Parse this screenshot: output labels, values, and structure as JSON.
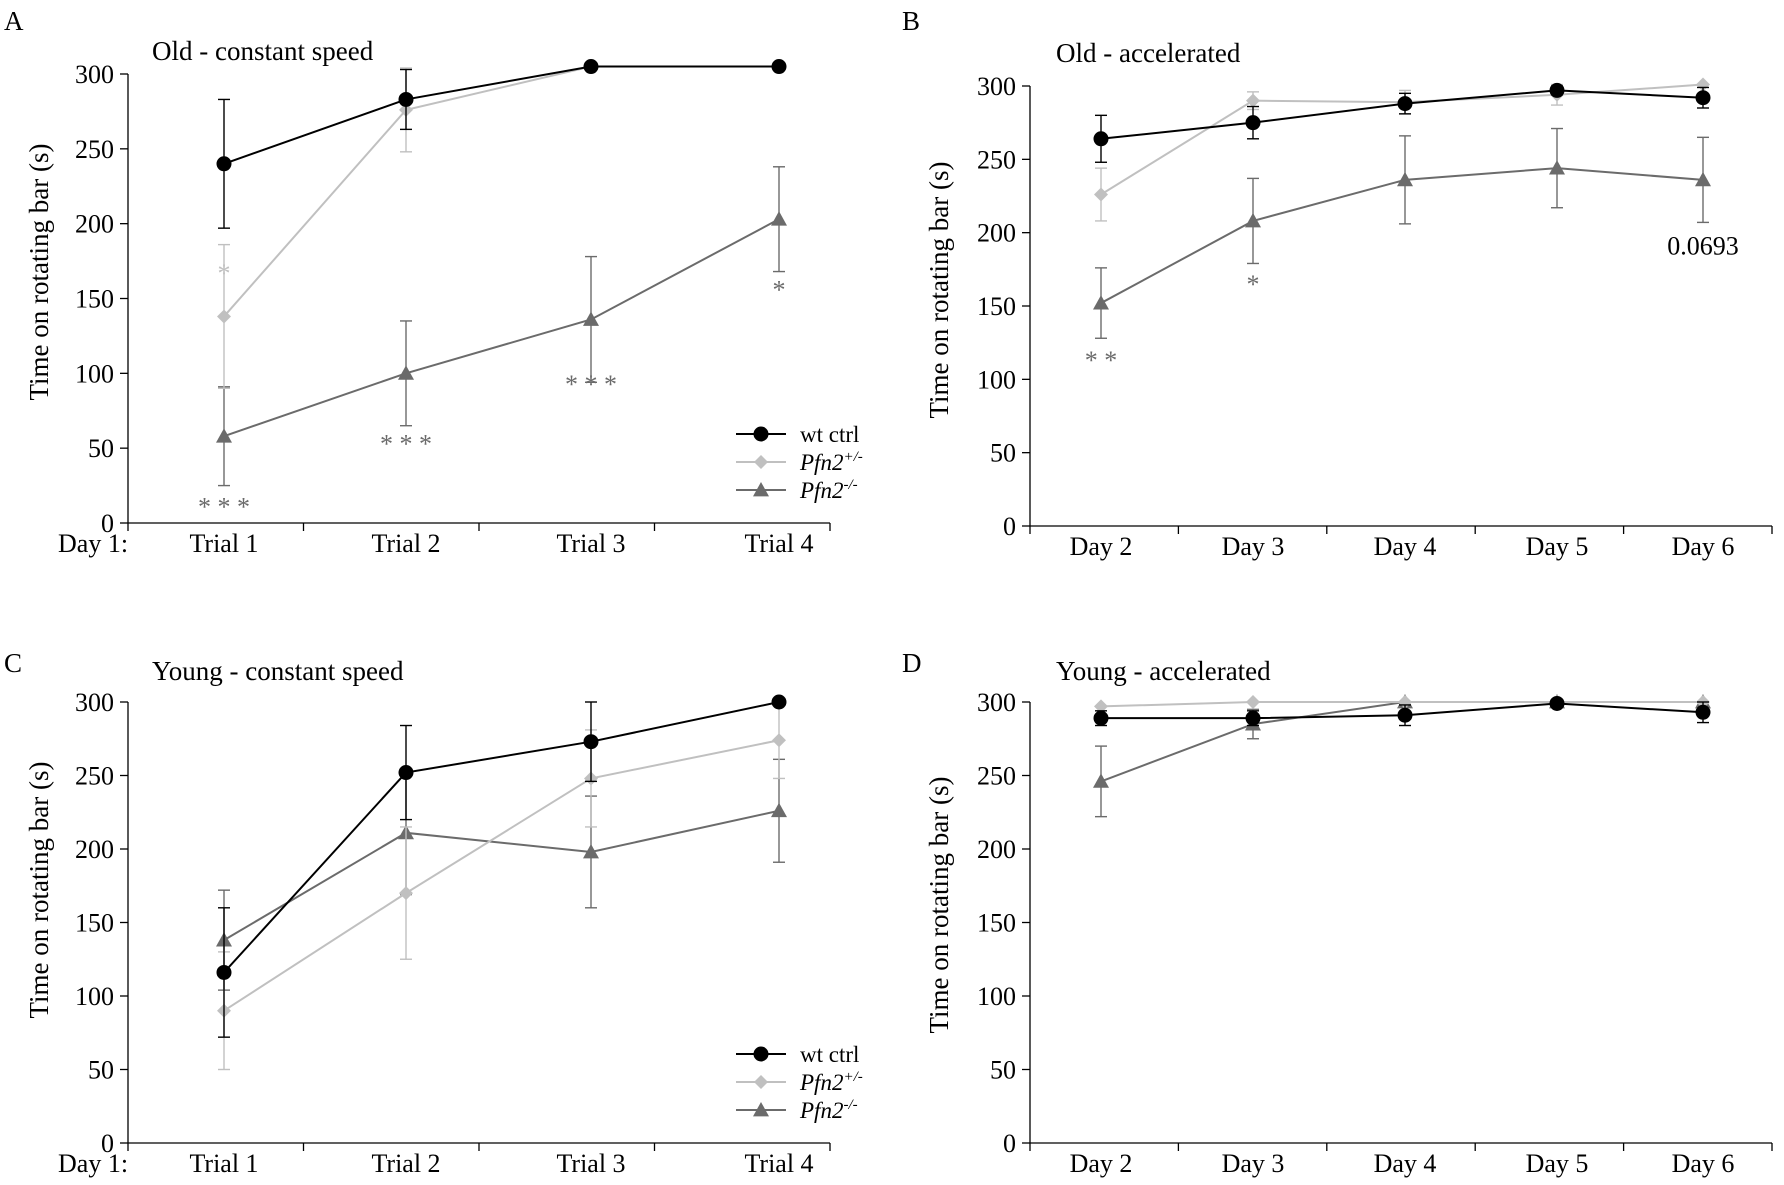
{
  "series_styles": {
    "wt_ctrl": {
      "color": "#000000",
      "marker": "circle"
    },
    "pfn2_het": {
      "color": "#c0c0c0",
      "marker": "diamond"
    },
    "pfn2_ko": {
      "color": "#6b6b6b",
      "marker": "triangle"
    }
  },
  "legend": {
    "wt": "wt ctrl",
    "het_base": "Pfn2",
    "het_sup": "+/-",
    "ko_base": "Pfn2",
    "ko_sup": "-/-"
  },
  "chart_data": [
    {
      "id": "A",
      "letter": "A",
      "type": "line",
      "title": "Old - constant speed",
      "ylabel": "Time on rotating bar (s)",
      "ylim": [
        0,
        300
      ],
      "yticks": [
        "0",
        "50",
        "100",
        "150",
        "200",
        "250",
        "300"
      ],
      "x_prefix": "Day 1:",
      "categories": [
        "Trial 1",
        "Trial 2",
        "Trial 3",
        "Trial 4"
      ],
      "legend_shown": true,
      "series": [
        {
          "key": "wt_ctrl",
          "name": "wt ctrl",
          "values": [
            240,
            283,
            305,
            305
          ],
          "err": [
            43,
            20,
            0,
            0
          ]
        },
        {
          "key": "pfn2_het",
          "name": "Pfn2+/-",
          "values": [
            138,
            276,
            305,
            305
          ],
          "err": [
            48,
            28,
            0,
            0
          ]
        },
        {
          "key": "pfn2_ko",
          "name": "Pfn2-/-",
          "values": [
            58,
            100,
            136,
            203
          ],
          "err": [
            33,
            35,
            42,
            35
          ]
        }
      ],
      "annotations": [
        {
          "text": "*",
          "cat": 0,
          "y": 161,
          "color": "#c0c0c0"
        },
        {
          "text": "* * *",
          "cat": 0,
          "y": 5,
          "color": "#6b6b6b"
        },
        {
          "text": "* * *",
          "cat": 1,
          "y": 47,
          "color": "#6b6b6b"
        },
        {
          "text": "* * *",
          "cat": 2,
          "y": 87,
          "color": "#6b6b6b"
        },
        {
          "text": "*",
          "cat": 3,
          "y": 150,
          "color": "#6b6b6b"
        }
      ]
    },
    {
      "id": "B",
      "letter": "B",
      "type": "line",
      "title": "Old - accelerated",
      "ylabel": "Time on rotating bar (s)",
      "ylim": [
        0,
        300
      ],
      "yticks": [
        "0",
        "50",
        "100",
        "150",
        "200",
        "250",
        "300"
      ],
      "x_prefix": "",
      "categories": [
        "Day 2",
        "Day 3",
        "Day 4",
        "Day 5",
        "Day 6"
      ],
      "legend_shown": false,
      "series": [
        {
          "key": "wt_ctrl",
          "name": "wt ctrl",
          "values": [
            264,
            275,
            288,
            297,
            292
          ],
          "err": [
            16,
            11,
            7,
            3,
            7
          ]
        },
        {
          "key": "pfn2_het",
          "name": "Pfn2+/-",
          "values": [
            226,
            290,
            289,
            294,
            301
          ],
          "err": [
            18,
            6,
            8,
            7,
            0
          ]
        },
        {
          "key": "pfn2_ko",
          "name": "Pfn2-/-",
          "values": [
            152,
            208,
            236,
            244,
            236
          ],
          "err": [
            24,
            29,
            30,
            27,
            29
          ]
        }
      ],
      "annotations": [
        {
          "text": "* *",
          "cat": 0,
          "y": 107,
          "color": "#6b6b6b"
        },
        {
          "text": "*",
          "cat": 1,
          "y": 159,
          "color": "#6b6b6b"
        },
        {
          "text": "0.0693",
          "cat": 4,
          "y": 185,
          "color": "#000000"
        }
      ]
    },
    {
      "id": "C",
      "letter": "C",
      "type": "line",
      "title": "Young - constant speed",
      "ylabel": "Time on rotating bar (s)",
      "ylim": [
        0,
        300
      ],
      "yticks": [
        "0",
        "50",
        "100",
        "150",
        "200",
        "250",
        "300"
      ],
      "x_prefix": "Day 1:",
      "categories": [
        "Trial 1",
        "Trial 2",
        "Trial 3",
        "Trial 4"
      ],
      "legend_shown": true,
      "series": [
        {
          "key": "wt_ctrl",
          "name": "wt ctrl",
          "values": [
            116,
            252,
            273,
            300
          ],
          "err": [
            44,
            32,
            27,
            0
          ]
        },
        {
          "key": "pfn2_het",
          "name": "Pfn2+/-",
          "values": [
            90,
            170,
            248,
            274
          ],
          "err": [
            40,
            45,
            33,
            26
          ]
        },
        {
          "key": "pfn2_ko",
          "name": "Pfn2-/-",
          "values": [
            138,
            211,
            198,
            226
          ],
          "err": [
            34,
            42,
            38,
            35
          ]
        }
      ],
      "annotations": []
    },
    {
      "id": "D",
      "letter": "D",
      "type": "line",
      "title": "Young - accelerated",
      "ylabel": "Time on rotating bar (s)",
      "ylim": [
        0,
        300
      ],
      "yticks": [
        "0",
        "50",
        "100",
        "150",
        "200",
        "250",
        "300"
      ],
      "x_prefix": "",
      "categories": [
        "Day 2",
        "Day 3",
        "Day 4",
        "Day 5",
        "Day 6"
      ],
      "legend_shown": false,
      "series": [
        {
          "key": "wt_ctrl",
          "name": "wt ctrl",
          "values": [
            289,
            289,
            291,
            299,
            293
          ],
          "err": [
            5,
            5,
            7,
            0,
            7
          ]
        },
        {
          "key": "pfn2_het",
          "name": "Pfn2+/-",
          "values": [
            297,
            300,
            300,
            300,
            300
          ],
          "err": [
            0,
            0,
            0,
            0,
            0
          ]
        },
        {
          "key": "pfn2_ko",
          "name": "Pfn2-/-",
          "values": [
            246,
            285,
            300,
            300,
            300
          ],
          "err": [
            24,
            10,
            0,
            0,
            0
          ]
        }
      ],
      "annotations": []
    }
  ]
}
